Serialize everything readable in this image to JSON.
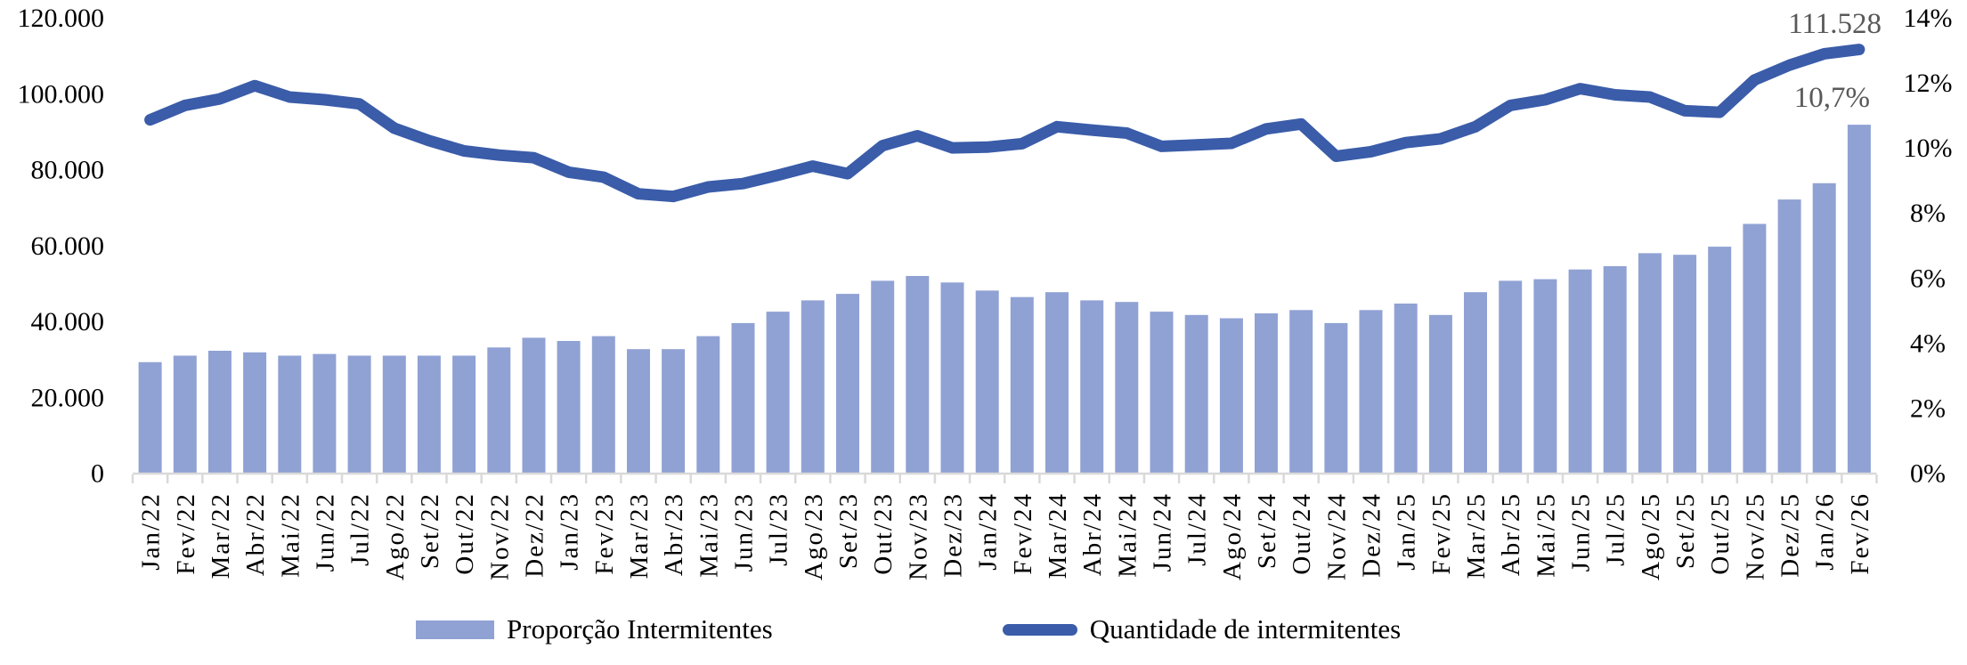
{
  "chart_data": {
    "type": "combo-bar-line",
    "title": "",
    "grid": false,
    "legend_position": "bottom",
    "categories": [
      "Jan/22",
      "Fev/22",
      "Mar/22",
      "Abr/22",
      "Mai/22",
      "Jun/22",
      "Jul/22",
      "Ago/22",
      "Set/22",
      "Out/22",
      "Nov/22",
      "Dez/22",
      "Jan/23",
      "Fev/23",
      "Mar/23",
      "Abr/23",
      "Mai/23",
      "Jun/23",
      "Jul/23",
      "Ago/23",
      "Set/23",
      "Out/23",
      "Nov/23",
      "Dez/23",
      "Jan/24",
      "Fev/24",
      "Mar/24",
      "Abr/24",
      "Mai/24",
      "Jun/24",
      "Jul/24",
      "Ago/24",
      "Set/24",
      "Out/24",
      "Nov/24",
      "Dez/24",
      "Jan/25",
      "Fev/25",
      "Mar/25",
      "Abr/25",
      "Mai/25",
      "Jun/25",
      "Jul/25",
      "Ago/25",
      "Set/25",
      "Out/25",
      "Nov/25",
      "Dez/25",
      "Jan/26",
      "Fev/26"
    ],
    "series": [
      {
        "name": "Proporção Intermitentes",
        "type": "bar",
        "axis": "right",
        "unit": "%",
        "color": "#90A2D4",
        "values": [
          3.4,
          3.6,
          3.75,
          3.7,
          3.6,
          3.65,
          3.6,
          3.6,
          3.6,
          3.6,
          3.85,
          4.15,
          4.05,
          4.2,
          3.8,
          3.8,
          4.2,
          4.6,
          4.95,
          5.3,
          5.5,
          5.9,
          6.05,
          5.85,
          5.6,
          5.4,
          5.55,
          5.3,
          5.25,
          4.95,
          4.85,
          4.75,
          4.9,
          5.0,
          4.6,
          5.0,
          5.2,
          4.85,
          5.55,
          5.9,
          5.95,
          6.25,
          6.35,
          6.75,
          6.7,
          6.95,
          7.65,
          8.4,
          8.9,
          10.7
        ]
      },
      {
        "name": "Quantidade de intermitentes",
        "type": "line",
        "axis": "left",
        "unit": "",
        "color": "#3A5CA9",
        "values": [
          93000,
          96800,
          98500,
          102000,
          99000,
          98300,
          97200,
          90800,
          87500,
          84800,
          83700,
          83000,
          79200,
          77900,
          73500,
          72800,
          75300,
          76200,
          78400,
          80800,
          78800,
          86200,
          88800,
          85600,
          85800,
          86700,
          91200,
          90300,
          89500,
          86000,
          86400,
          86800,
          90600,
          91900,
          83400,
          84600,
          87000,
          88000,
          91200,
          96800,
          98300,
          101200,
          99600,
          99000,
          95400,
          95000,
          103500,
          107400,
          110400,
          111528
        ]
      }
    ],
    "left_axis": {
      "min": 0,
      "max": 120000,
      "step": 20000,
      "tick_labels": [
        "0",
        "20.000",
        "40.000",
        "60.000",
        "80.000",
        "100.000",
        "120.000"
      ]
    },
    "right_axis": {
      "min": 0,
      "max": 14,
      "step": 2,
      "tick_labels": [
        "0%",
        "2%",
        "4%",
        "6%",
        "8%",
        "10%",
        "12%",
        "14%"
      ]
    },
    "data_labels": {
      "line_last": "111.528",
      "bar_last": "10,7%"
    }
  },
  "annotations": {
    "line_last": "111.528",
    "bar_last": "10,7%"
  },
  "legend": {
    "bar_label": "Proporção Intermitentes",
    "line_label": "Quantidade de intermitentes"
  },
  "colors": {
    "bar_fill": "#90A2D4",
    "line_stroke": "#3A5CA9",
    "axis_line": "#D9D9D9",
    "tick_text": "#000000",
    "annotation_text": "#595959",
    "background": "#FFFFFF"
  }
}
